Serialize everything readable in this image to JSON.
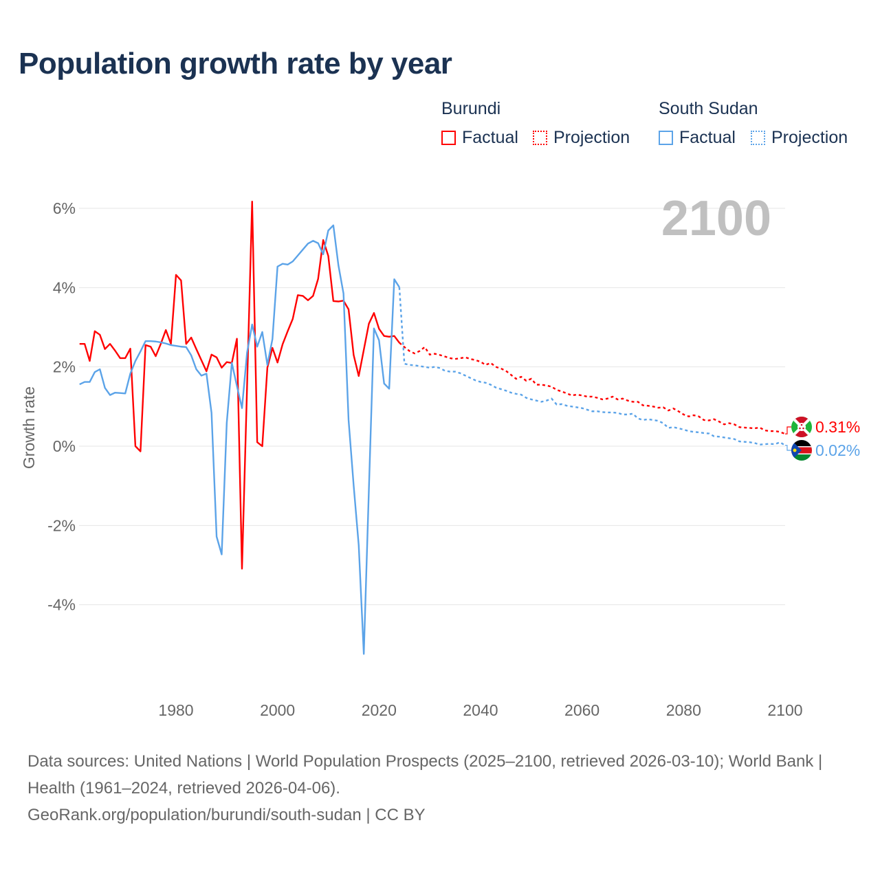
{
  "title": "Population growth rate by year",
  "legend": {
    "groups": [
      {
        "name": "Burundi",
        "factual": "Factual",
        "projection": "Projection",
        "color": "#ff0000"
      },
      {
        "name": "South Sudan",
        "factual": "Factual",
        "projection": "Projection",
        "color": "#5ba3e8"
      }
    ]
  },
  "year_overlay": "2100",
  "footer": {
    "sources": "Data sources: United Nations | World Population Prospects (2025–2100, retrieved 2026-03-10); World Bank | Health (1961–2024, retrieved 2026-04-06).",
    "link": "GeoRank.org/population/burundi/south-sudan | CC BY"
  },
  "chart_data": {
    "type": "line",
    "title": "Population growth rate by year",
    "xlabel": "",
    "ylabel": "Growth rate",
    "xlim": [
      1961,
      2100
    ],
    "ylim": [
      -6.2,
      6.2
    ],
    "x_ticks": [
      {
        "v": 1980,
        "label": "1980"
      },
      {
        "v": 2000,
        "label": "2000"
      },
      {
        "v": 2020,
        "label": "2020"
      },
      {
        "v": 2040,
        "label": "2040"
      },
      {
        "v": 2060,
        "label": "2060"
      },
      {
        "v": 2080,
        "label": "2080"
      },
      {
        "v": 2100,
        "label": "2100"
      }
    ],
    "y_ticks": [
      {
        "v": 6,
        "label": "6%"
      },
      {
        "v": 4,
        "label": "4%"
      },
      {
        "v": 2,
        "label": "2%"
      },
      {
        "v": 0,
        "label": "0%"
      },
      {
        "v": -2,
        "label": "-2%"
      },
      {
        "v": -4,
        "label": "-4%"
      }
    ],
    "grid": true,
    "series": [
      {
        "name": "Burundi",
        "color": "#ff0000",
        "end_label": "0.31%",
        "factual_start": 1961,
        "factual": [
          2.58,
          2.58,
          2.15,
          2.9,
          2.81,
          2.45,
          2.58,
          2.41,
          2.22,
          2.22,
          2.46,
          0.0,
          -0.13,
          2.55,
          2.51,
          2.27,
          2.58,
          2.93,
          2.58,
          4.32,
          4.18,
          2.58,
          2.74,
          2.45,
          2.17,
          1.89,
          2.31,
          2.24,
          1.98,
          2.12,
          2.1,
          2.71,
          -3.09,
          1.5,
          6.17,
          0.1,
          0.0,
          1.98,
          2.48,
          2.11,
          2.57,
          2.9,
          3.21,
          3.81,
          3.79,
          3.68,
          3.79,
          4.22,
          5.2,
          4.8,
          3.66,
          3.65,
          3.67,
          3.45,
          2.3,
          1.77,
          2.43,
          3.09,
          3.36,
          2.96,
          2.78,
          2.76,
          2.78,
          2.61
        ],
        "projection_start": 2025,
        "projection": [
          2.5,
          2.4,
          2.34,
          2.4,
          2.5,
          2.31,
          2.33,
          2.3,
          2.26,
          2.22,
          2.2,
          2.22,
          2.24,
          2.2,
          2.17,
          2.13,
          2.05,
          2.1,
          2.0,
          1.96,
          1.9,
          1.8,
          1.7,
          1.75,
          1.65,
          1.7,
          1.55,
          1.55,
          1.53,
          1.5,
          1.42,
          1.38,
          1.33,
          1.28,
          1.3,
          1.28,
          1.25,
          1.25,
          1.22,
          1.18,
          1.2,
          1.25,
          1.18,
          1.2,
          1.15,
          1.12,
          1.12,
          1.03,
          1.02,
          1.0,
          0.97,
          0.98,
          0.9,
          0.95,
          0.88,
          0.8,
          0.75,
          0.78,
          0.75,
          0.66,
          0.65,
          0.68,
          0.62,
          0.55,
          0.58,
          0.55,
          0.48,
          0.47,
          0.46,
          0.45,
          0.47,
          0.4,
          0.38,
          0.38,
          0.36,
          0.31
        ]
      },
      {
        "name": "South Sudan",
        "color": "#5ba3e8",
        "end_label": "0.02%",
        "factual_start": 1961,
        "factual": [
          1.56,
          1.62,
          1.62,
          1.87,
          1.94,
          1.47,
          1.29,
          1.35,
          1.34,
          1.33,
          1.83,
          2.15,
          2.39,
          2.65,
          2.65,
          2.64,
          2.62,
          2.59,
          2.55,
          2.53,
          2.51,
          2.5,
          2.29,
          1.94,
          1.78,
          1.83,
          0.84,
          -2.28,
          -2.73,
          0.59,
          2.1,
          1.52,
          0.96,
          2.36,
          3.07,
          2.51,
          2.88,
          2.05,
          2.7,
          4.53,
          4.6,
          4.58,
          4.66,
          4.81,
          4.96,
          5.11,
          5.18,
          5.12,
          4.84,
          5.44,
          5.57,
          4.56,
          3.85,
          0.66,
          -0.99,
          -2.5,
          -5.24,
          -1.1,
          2.97,
          2.67,
          1.58,
          1.45,
          4.21,
          4.01
        ],
        "projection_start": 2025,
        "projection": [
          2.08,
          2.05,
          2.04,
          2.02,
          2.0,
          1.98,
          2.0,
          1.97,
          1.9,
          1.88,
          1.88,
          1.84,
          1.78,
          1.72,
          1.66,
          1.62,
          1.6,
          1.55,
          1.48,
          1.44,
          1.4,
          1.35,
          1.32,
          1.3,
          1.22,
          1.18,
          1.15,
          1.12,
          1.15,
          1.2,
          1.05,
          1.06,
          1.02,
          1.0,
          0.98,
          0.96,
          0.92,
          0.88,
          0.88,
          0.86,
          0.85,
          0.85,
          0.84,
          0.8,
          0.8,
          0.82,
          0.7,
          0.66,
          0.68,
          0.66,
          0.64,
          0.58,
          0.46,
          0.48,
          0.45,
          0.42,
          0.38,
          0.36,
          0.35,
          0.33,
          0.32,
          0.25,
          0.24,
          0.22,
          0.2,
          0.18,
          0.12,
          0.11,
          0.1,
          0.08,
          0.04,
          0.05,
          0.06,
          0.05,
          0.1,
          0.02
        ]
      }
    ]
  }
}
